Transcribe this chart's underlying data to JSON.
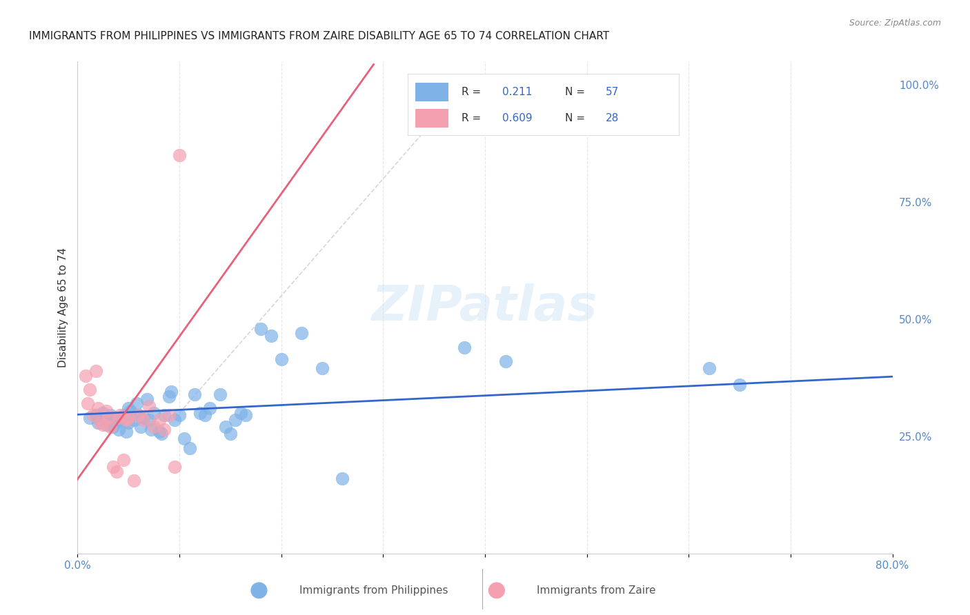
{
  "title": "IMMIGRANTS FROM PHILIPPINES VS IMMIGRANTS FROM ZAIRE DISABILITY AGE 65 TO 74 CORRELATION CHART",
  "source": "Source: ZipAtlas.com",
  "ylabel": "Disability Age 65 to 74",
  "xlim": [
    0.0,
    0.8
  ],
  "ylim": [
    0.0,
    1.05
  ],
  "watermark": "ZIPatlas",
  "blue_color": "#7fb3e8",
  "pink_color": "#f4a0b0",
  "blue_line_color": "#3366cc",
  "pink_line_color": "#e8607a",
  "dash_color": "#cccccc",
  "r_blue": 0.211,
  "n_blue": 57,
  "r_pink": 0.609,
  "n_pink": 28,
  "blue_points_x": [
    0.012,
    0.018,
    0.02,
    0.022,
    0.025,
    0.028,
    0.03,
    0.03,
    0.032,
    0.035,
    0.038,
    0.04,
    0.04,
    0.042,
    0.045,
    0.048,
    0.05,
    0.05,
    0.052,
    0.055,
    0.058,
    0.06,
    0.062,
    0.065,
    0.068,
    0.07,
    0.072,
    0.075,
    0.08,
    0.082,
    0.085,
    0.09,
    0.092,
    0.095,
    0.1,
    0.105,
    0.11,
    0.115,
    0.12,
    0.125,
    0.13,
    0.14,
    0.145,
    0.15,
    0.155,
    0.16,
    0.165,
    0.18,
    0.19,
    0.2,
    0.22,
    0.24,
    0.26,
    0.38,
    0.42,
    0.62,
    0.65
  ],
  "blue_points_y": [
    0.29,
    0.295,
    0.28,
    0.285,
    0.3,
    0.275,
    0.29,
    0.285,
    0.295,
    0.27,
    0.28,
    0.285,
    0.265,
    0.29,
    0.295,
    0.26,
    0.28,
    0.31,
    0.305,
    0.285,
    0.32,
    0.295,
    0.27,
    0.29,
    0.33,
    0.285,
    0.265,
    0.3,
    0.26,
    0.255,
    0.295,
    0.335,
    0.345,
    0.285,
    0.295,
    0.245,
    0.225,
    0.34,
    0.3,
    0.295,
    0.31,
    0.34,
    0.27,
    0.255,
    0.285,
    0.3,
    0.295,
    0.48,
    0.465,
    0.415,
    0.47,
    0.395,
    0.16,
    0.44,
    0.41,
    0.395,
    0.36
  ],
  "pink_points_x": [
    0.008,
    0.01,
    0.012,
    0.015,
    0.018,
    0.02,
    0.022,
    0.025,
    0.028,
    0.03,
    0.032,
    0.035,
    0.038,
    0.04,
    0.042,
    0.045,
    0.048,
    0.05,
    0.055,
    0.06,
    0.065,
    0.07,
    0.075,
    0.08,
    0.085,
    0.09,
    0.095,
    0.1
  ],
  "pink_points_y": [
    0.38,
    0.32,
    0.35,
    0.295,
    0.39,
    0.31,
    0.28,
    0.275,
    0.305,
    0.29,
    0.27,
    0.185,
    0.175,
    0.29,
    0.295,
    0.2,
    0.285,
    0.29,
    0.155,
    0.295,
    0.285,
    0.315,
    0.27,
    0.285,
    0.265,
    0.295,
    0.185,
    0.85
  ],
  "grid_color": "#e0e0e0",
  "background_color": "#ffffff"
}
